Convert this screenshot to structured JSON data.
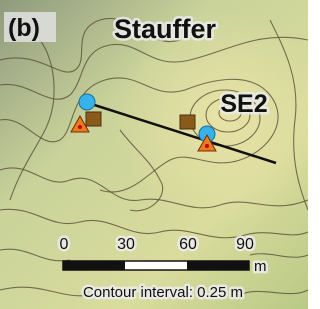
{
  "panel_label": "(b)",
  "title": "Stauffer",
  "site_label": "SE2",
  "scale_bar": {
    "labels": [
      "0",
      "30",
      "60",
      "90"
    ],
    "unit": "m"
  },
  "contour_note": "Contour interval: 0.25 m"
}
